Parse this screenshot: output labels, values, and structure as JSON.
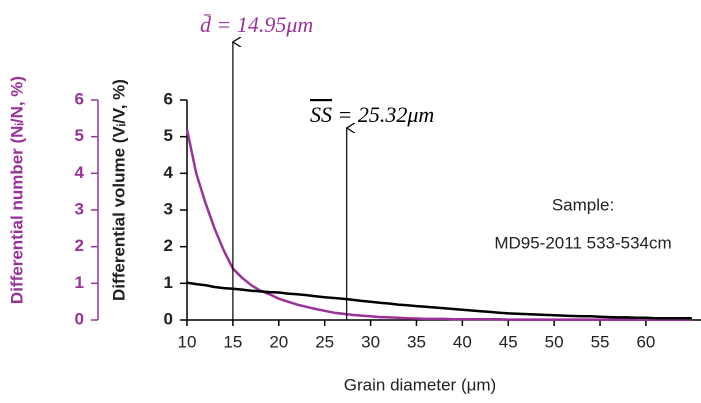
{
  "chart_data": {
    "type": "line",
    "xlabel": "Grain diameter (μm)",
    "ylabel": "Differential volume (Vᵢ/V, %)",
    "y2label": "Differential number (Nᵢ/N, %)",
    "x": [
      10,
      11,
      12,
      13,
      14,
      15,
      16,
      17,
      18,
      19,
      20,
      21,
      22,
      23,
      24,
      25,
      26,
      27,
      28,
      29,
      30,
      31,
      32,
      33,
      34,
      35,
      36,
      37,
      38,
      39,
      40,
      41,
      42,
      43,
      44,
      45,
      46,
      47,
      48,
      49,
      50,
      51,
      52,
      53,
      54,
      55,
      56,
      57,
      58,
      59,
      60,
      61,
      62,
      63,
      64,
      65
    ],
    "xlim": [
      10,
      66
    ],
    "xticks": [
      10,
      15,
      20,
      25,
      30,
      35,
      40,
      45,
      50,
      55,
      60
    ],
    "ylim": [
      0,
      6
    ],
    "yticks": [
      0,
      1,
      2,
      3,
      4,
      5,
      6
    ],
    "y2lim": [
      0,
      6
    ],
    "y2ticks": [
      0,
      1,
      2,
      3,
      4,
      5,
      6
    ],
    "series": [
      {
        "name": "Differential number",
        "axis": "y2",
        "color": "#993399",
        "values": [
          5.2,
          4.0,
          3.2,
          2.5,
          1.9,
          1.4,
          1.15,
          0.95,
          0.8,
          0.7,
          0.58,
          0.5,
          0.42,
          0.36,
          0.3,
          0.25,
          0.2,
          0.17,
          0.14,
          0.12,
          0.1,
          0.08,
          0.07,
          0.06,
          0.05,
          0.04,
          0.03,
          0.03,
          0.03,
          0.02,
          0.02,
          0.02,
          0.02,
          0.02,
          0.02,
          0.01,
          0.01,
          0.01,
          0.01,
          0.01,
          0.01,
          0.01,
          0.01,
          0.01,
          0.01,
          0.01,
          0.01,
          0.01,
          0.01,
          0.01,
          0.01,
          0.01,
          0.01,
          0.01,
          0.01,
          0.01
        ]
      },
      {
        "name": "Differential volume",
        "color": "#000000",
        "values": [
          1.02,
          0.98,
          0.95,
          0.9,
          0.87,
          0.85,
          0.83,
          0.8,
          0.78,
          0.76,
          0.75,
          0.72,
          0.7,
          0.68,
          0.65,
          0.62,
          0.6,
          0.58,
          0.55,
          0.52,
          0.5,
          0.47,
          0.45,
          0.42,
          0.4,
          0.38,
          0.36,
          0.34,
          0.32,
          0.3,
          0.28,
          0.26,
          0.24,
          0.22,
          0.2,
          0.18,
          0.17,
          0.16,
          0.15,
          0.14,
          0.13,
          0.12,
          0.11,
          0.1,
          0.1,
          0.09,
          0.08,
          0.07,
          0.07,
          0.06,
          0.06,
          0.05,
          0.05,
          0.05,
          0.05,
          0.05
        ]
      }
    ],
    "annotations": [
      {
        "symbol": "d̄",
        "rest": " = 14.95μm",
        "x": 15
      },
      {
        "symbol": "SS",
        "rest": " = 25.32μm",
        "x": 27.4
      }
    ],
    "sample_label": [
      "Sample:",
      "MD95-2011 533-534cm"
    ]
  }
}
